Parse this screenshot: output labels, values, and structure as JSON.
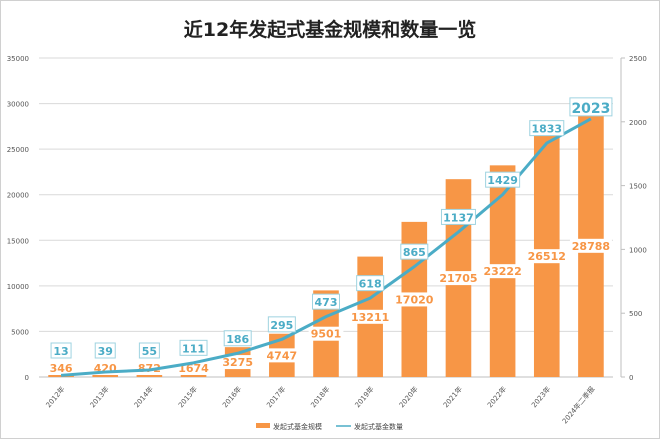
{
  "chart_data": {
    "type": "bar+line",
    "title": "近12年发起式基金规模和数量一览",
    "categories": [
      "2012年",
      "2013年",
      "2014年",
      "2015年",
      "2016年",
      "2017年",
      "2018年",
      "2019年",
      "2020年",
      "2021年",
      "2022年",
      "2023年",
      "2024年二季报"
    ],
    "series": [
      {
        "name": "发起式基金规模",
        "type": "bar",
        "axis": "left",
        "color": "#F79646",
        "values": [
          346,
          420,
          872,
          1674,
          3275,
          4747,
          9501,
          13211,
          17020,
          21705,
          23222,
          26512,
          28788
        ]
      },
      {
        "name": "发起式基金数量",
        "type": "line",
        "axis": "right",
        "color": "#4BACC6",
        "values": [
          13,
          39,
          55,
          111,
          186,
          295,
          473,
          618,
          865,
          1137,
          1429,
          1833,
          2023
        ]
      }
    ],
    "left_axis": {
      "ylim": [
        0,
        35000
      ],
      "ticks": [
        0,
        5000,
        10000,
        15000,
        20000,
        25000,
        30000,
        35000
      ]
    },
    "right_axis": {
      "ylim": [
        0,
        2500
      ],
      "ticks": [
        0,
        500,
        1000,
        1500,
        2000,
        2500
      ]
    },
    "grid": true,
    "legend": "bottom"
  }
}
